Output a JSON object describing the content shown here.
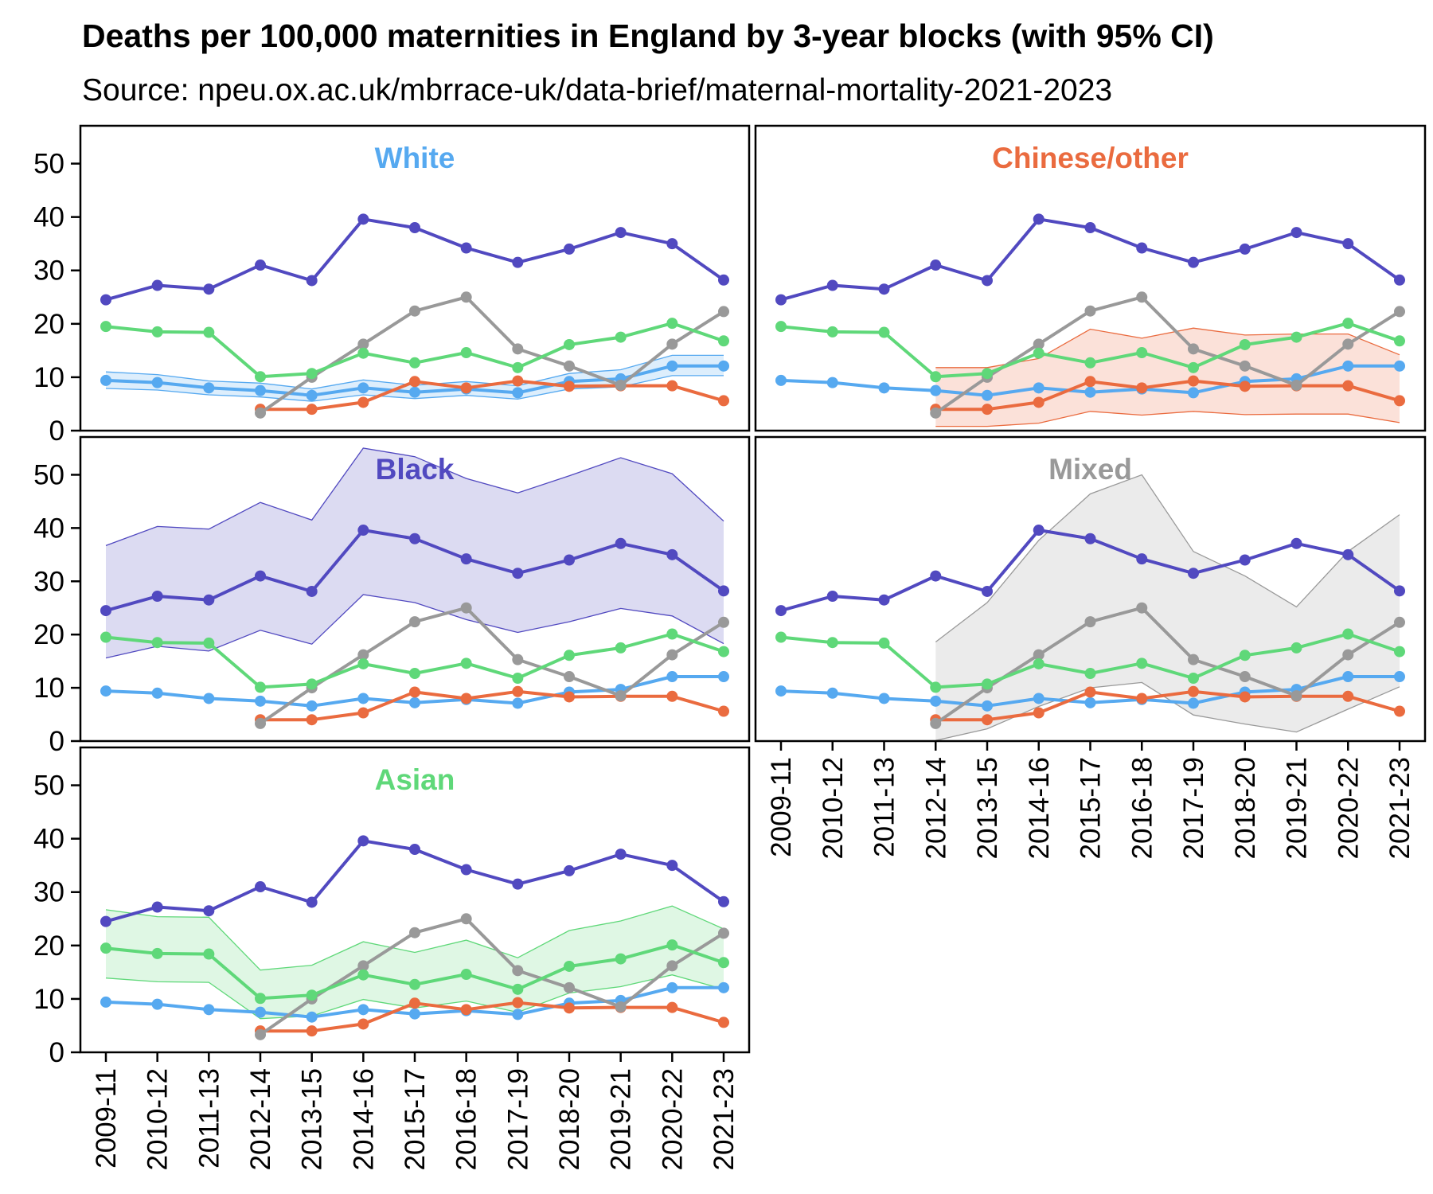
{
  "title": "Deaths per 100,000 maternities in England by 3-year blocks (with 95% CI)",
  "subtitle": "Source: npeu.ox.ac.uk/mbrrace-uk/data-brief/maternal-mortality-2021-2023",
  "chart_data": {
    "type": "line",
    "facet_by": "ethnic group (shaded band = 95% CI of the highlighted group)",
    "categories": [
      "2009-11",
      "2010-12",
      "2011-13",
      "2012-14",
      "2013-15",
      "2014-16",
      "2015-17",
      "2016-18",
      "2017-19",
      "2018-20",
      "2019-21",
      "2020-22",
      "2021-23"
    ],
    "ylim": [
      0,
      55
    ],
    "yticks": [
      0,
      10,
      20,
      30,
      40,
      50
    ],
    "series": [
      {
        "name": "White",
        "color": "#56a9f0",
        "values": [
          9.4,
          9.0,
          8.0,
          7.5,
          6.6,
          8.0,
          7.2,
          7.8,
          7.1,
          9.2,
          9.7,
          12.1,
          12.1
        ],
        "ci_low": [
          7.9,
          7.6,
          6.7,
          6.3,
          5.5,
          6.7,
          6.0,
          6.6,
          5.9,
          7.8,
          8.2,
          10.3,
          10.3
        ],
        "ci_high": [
          11.0,
          10.5,
          9.3,
          8.9,
          7.8,
          9.5,
          8.5,
          9.2,
          8.4,
          10.7,
          11.4,
          14.1,
          14.1
        ]
      },
      {
        "name": "Chinese/other",
        "color": "#ea6b3f",
        "values": [
          null,
          null,
          null,
          4.0,
          4.0,
          5.3,
          9.2,
          8.0,
          9.3,
          8.3,
          8.4,
          8.4,
          5.6
        ],
        "ci_low": [
          null,
          null,
          null,
          0.8,
          0.8,
          1.4,
          3.6,
          2.9,
          3.6,
          3.0,
          3.1,
          3.1,
          1.5
        ],
        "ci_high": [
          null,
          null,
          null,
          11.8,
          11.8,
          13.5,
          19.0,
          17.3,
          19.2,
          17.9,
          18.1,
          18.1,
          14.2
        ]
      },
      {
        "name": "Black",
        "color": "#5149c0",
        "values": [
          24.5,
          27.2,
          26.5,
          31.0,
          28.1,
          39.6,
          38.0,
          34.2,
          31.5,
          34.0,
          37.1,
          35.0,
          28.2
        ],
        "ci_low": [
          15.6,
          17.8,
          16.9,
          20.8,
          18.2,
          27.5,
          26.0,
          22.8,
          20.4,
          22.4,
          24.9,
          23.5,
          18.3
        ],
        "ci_high": [
          36.7,
          40.3,
          39.8,
          44.8,
          41.5,
          55.0,
          53.4,
          49.3,
          46.6,
          49.8,
          53.2,
          50.2,
          41.3
        ]
      },
      {
        "name": "Mixed",
        "color": "#999999",
        "values": [
          null,
          null,
          null,
          3.3,
          10.0,
          16.2,
          22.4,
          25.0,
          15.3,
          12.1,
          8.5,
          16.2,
          22.3
        ],
        "ci_low": [
          null,
          null,
          null,
          0.1,
          2.3,
          6.5,
          10.0,
          11.0,
          4.9,
          3.2,
          1.7,
          6.0,
          10.2
        ],
        "ci_high": [
          null,
          null,
          null,
          18.6,
          26.0,
          37.7,
          46.4,
          50.0,
          35.6,
          31.0,
          25.2,
          35.6,
          42.5
        ]
      },
      {
        "name": "Asian",
        "color": "#5fd879",
        "values": [
          19.5,
          18.5,
          18.4,
          10.1,
          10.7,
          14.5,
          12.7,
          14.6,
          11.8,
          16.1,
          17.5,
          20.1,
          16.8
        ],
        "ci_low": [
          13.9,
          13.2,
          13.1,
          6.3,
          6.8,
          9.9,
          8.3,
          9.6,
          7.5,
          11.1,
          12.3,
          14.5,
          11.8
        ],
        "ci_high": [
          26.7,
          25.4,
          25.3,
          15.4,
          16.3,
          20.7,
          18.7,
          21.0,
          17.7,
          22.8,
          24.6,
          27.4,
          23.1
        ]
      }
    ],
    "panels": [
      {
        "label": "White",
        "series": "White"
      },
      {
        "label": "Chinese/other",
        "series": "Chinese/other"
      },
      {
        "label": "Black",
        "series": "Black"
      },
      {
        "label": "Mixed",
        "series": "Mixed"
      },
      {
        "label": "Asian",
        "series": "Asian"
      }
    ]
  }
}
